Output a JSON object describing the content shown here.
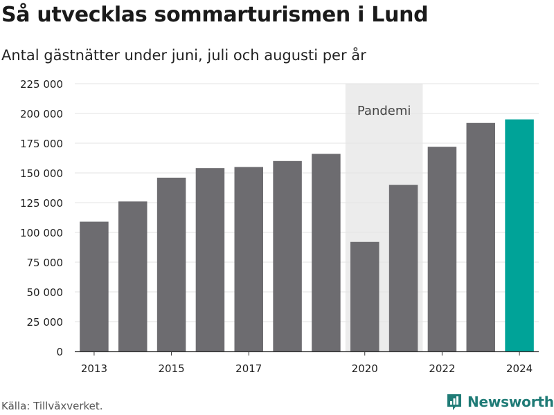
{
  "title": "Så utvecklas sommarturismen i Lund",
  "subtitle": "Antal gästnätter under juni, juli och augusti per år",
  "source": "Källa: Tillväxverket.",
  "brand": {
    "name": "Newsworthy",
    "icon": "bar-chart-logo-icon",
    "color": "#1f7b76"
  },
  "chart_data": {
    "type": "bar",
    "x": [
      2013,
      2014,
      2015,
      2016,
      2017,
      2018,
      2019,
      2020,
      2021,
      2022,
      2023,
      2024
    ],
    "values": [
      109000,
      126000,
      146000,
      154000,
      155000,
      160000,
      166000,
      92000,
      140000,
      172000,
      192000,
      195000
    ],
    "ylim": [
      0,
      225000
    ],
    "yticks": [
      0,
      25000,
      50000,
      75000,
      100000,
      125000,
      150000,
      175000,
      200000,
      225000
    ],
    "ytick_labels": [
      "0",
      "25 000",
      "50 000",
      "75 000",
      "100 000",
      "125 000",
      "150 000",
      "175 000",
      "200 000",
      "225 000"
    ],
    "xtick_labels": [
      "2013",
      "2015",
      "2017",
      "2020",
      "2022",
      "2024"
    ],
    "grid": true,
    "colors": {
      "bar": "#6d6c70",
      "highlight": "#00a398",
      "band": "#ececec",
      "grid": "#e3e3e3"
    },
    "highlight_x": 2024,
    "annotation": {
      "label": "Pandemi",
      "from": 2020,
      "to": 2021
    }
  }
}
